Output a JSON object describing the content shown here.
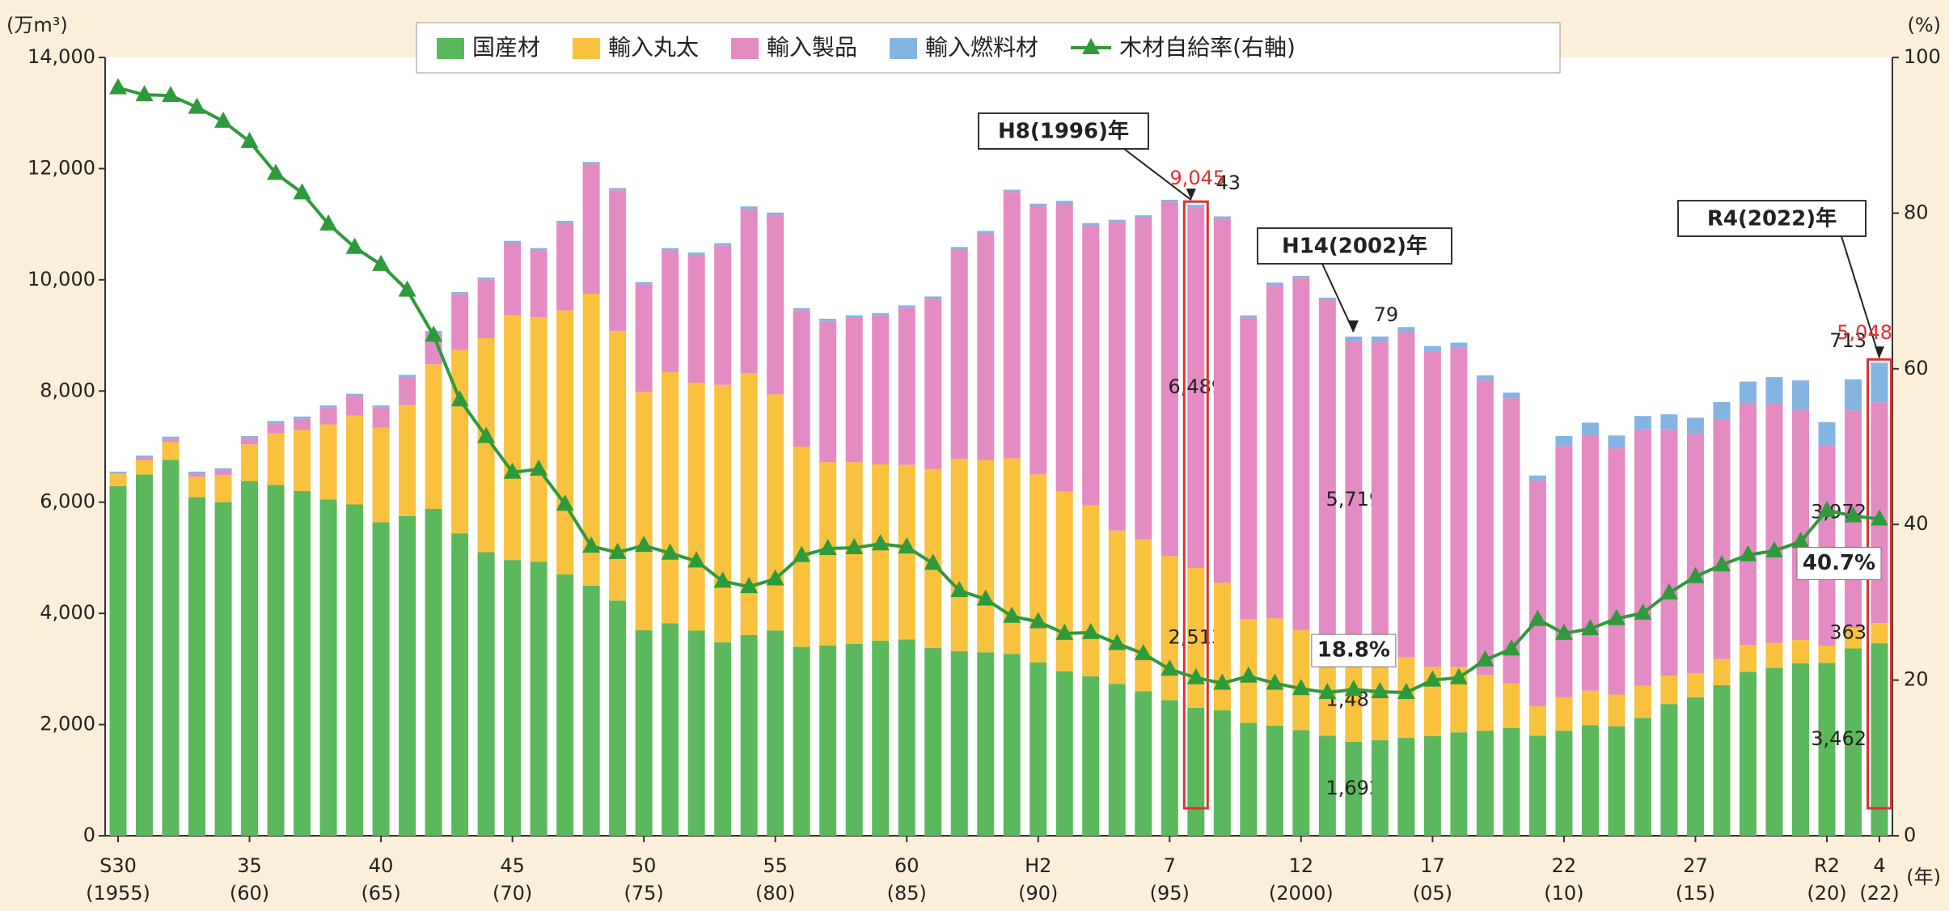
{
  "chart_data": {
    "type": "stacked-bar-line",
    "categories": [
      "S30",
      null,
      null,
      null,
      null,
      "35",
      null,
      null,
      null,
      null,
      "40",
      null,
      null,
      null,
      null,
      "45",
      null,
      null,
      null,
      null,
      "50",
      null,
      null,
      null,
      null,
      "55",
      null,
      null,
      null,
      null,
      "60",
      null,
      null,
      null,
      null,
      "H2",
      null,
      null,
      null,
      null,
      "7",
      null,
      null,
      null,
      null,
      "12",
      null,
      null,
      null,
      null,
      "17",
      null,
      null,
      null,
      null,
      "22",
      null,
      null,
      null,
      null,
      "27",
      null,
      null,
      null,
      null,
      "R2",
      null,
      "4"
    ],
    "categories_sub": [
      "(1955)",
      null,
      null,
      null,
      null,
      "(60)",
      null,
      null,
      null,
      null,
      "(65)",
      null,
      null,
      null,
      null,
      "(70)",
      null,
      null,
      null,
      null,
      "(75)",
      null,
      null,
      null,
      null,
      "(80)",
      null,
      null,
      null,
      null,
      "(85)",
      null,
      null,
      null,
      null,
      "(90)",
      null,
      null,
      null,
      null,
      "(95)",
      null,
      null,
      null,
      null,
      "(2000)",
      null,
      null,
      null,
      null,
      "(05)",
      null,
      null,
      null,
      null,
      "(10)",
      null,
      null,
      null,
      null,
      "(15)",
      null,
      null,
      null,
      null,
      "(20)",
      null,
      "(22)"
    ],
    "y_label": "(万m³)",
    "y2_label": "(%)",
    "x_label": "(年)",
    "ylim": [
      0,
      14000
    ],
    "yticks": [
      0,
      {
        "value": 2000,
        "label": "2,000"
      },
      {
        "value": 4000,
        "label": "4,000"
      },
      {
        "value": 6000,
        "label": "6,000"
      },
      {
        "value": 8000,
        "label": "8,000"
      },
      {
        "value": 10000,
        "label": "10,000"
      },
      {
        "value": 12000,
        "label": "12,000"
      },
      {
        "value": 14000,
        "label": "14,000"
      }
    ],
    "y2lim": [
      0,
      100
    ],
    "y2ticks": [
      0,
      20,
      40,
      60,
      80,
      100
    ],
    "series": [
      {
        "name": "国産材",
        "color": "#5cb85c",
        "values": [
          6290,
          6500,
          6760,
          6090,
          6000,
          6380,
          6310,
          6200,
          6050,
          5960,
          5640,
          5750,
          5880,
          5440,
          5100,
          4960,
          4930,
          4700,
          4500,
          4230,
          3700,
          3820,
          3690,
          3480,
          3610,
          3690,
          3400,
          3420,
          3450,
          3510,
          3530,
          3380,
          3320,
          3300,
          3270,
          3120,
          2960,
          2870,
          2730,
          2600,
          2440,
          2304,
          2260,
          2030,
          1980,
          1900,
          1800,
          1692,
          1720,
          1760,
          1790,
          1860,
          1890,
          1940,
          1800,
          1890,
          1990,
          1970,
          2120,
          2370,
          2490,
          2710,
          2950,
          3020,
          3100,
          3110,
          3370,
          3462
        ],
        "value_labels": [
          null,
          null,
          null,
          null,
          null,
          null,
          null,
          null,
          null,
          null,
          null,
          null,
          null,
          null,
          null,
          null,
          null,
          null,
          null,
          null,
          null,
          null,
          null,
          null,
          null,
          null,
          null,
          null,
          null,
          null,
          null,
          null,
          null,
          null,
          null,
          null,
          null,
          null,
          null,
          null,
          null,
          null,
          null,
          null,
          null,
          null,
          null,
          "1,692",
          null,
          null,
          null,
          null,
          null,
          null,
          null,
          null,
          null,
          null,
          null,
          null,
          null,
          null,
          null,
          null,
          null,
          null,
          null,
          "3,462"
        ]
      },
      {
        "name": "輸入丸太",
        "color": "#f8c23e",
        "values": [
          220,
          260,
          320,
          370,
          490,
          660,
          930,
          1100,
          1350,
          1600,
          1700,
          2000,
          2600,
          3300,
          3850,
          4400,
          4400,
          4750,
          5250,
          4850,
          4280,
          4520,
          4460,
          4630,
          4710,
          4250,
          3600,
          3300,
          3270,
          3170,
          3140,
          3220,
          3460,
          3460,
          3520,
          3380,
          3230,
          3070,
          2760,
          2730,
          2590,
          2513,
          2290,
          1870,
          1930,
          1800,
          1640,
          1487,
          1420,
          1450,
          1250,
          1180,
          1000,
          800,
          530,
          600,
          620,
          570,
          580,
          510,
          430,
          470,
          480,
          450,
          420,
          310,
          370,
          363
        ],
        "value_labels": [
          null,
          null,
          null,
          null,
          null,
          null,
          null,
          null,
          null,
          null,
          null,
          null,
          null,
          null,
          null,
          null,
          null,
          null,
          null,
          null,
          null,
          null,
          null,
          null,
          null,
          null,
          null,
          null,
          null,
          null,
          null,
          null,
          null,
          null,
          null,
          null,
          null,
          null,
          null,
          null,
          null,
          "2,513",
          null,
          null,
          null,
          null,
          null,
          "1,487",
          null,
          null,
          null,
          null,
          null,
          null,
          null,
          null,
          null,
          null,
          null,
          null,
          null,
          null,
          null,
          null,
          null,
          null,
          null,
          "363"
        ]
      },
      {
        "name": "輸入製品",
        "color": "#e48bc3",
        "values": [
          10,
          40,
          60,
          50,
          80,
          110,
          180,
          200,
          300,
          350,
          360,
          500,
          560,
          1000,
          1050,
          1300,
          1200,
          1570,
          2330,
          2530,
          1940,
          2190,
          2300,
          2510,
          2960,
          3230,
          2450,
          2540,
          2600,
          2680,
          2830,
          3060,
          3770,
          4080,
          4790,
          4830,
          5190,
          5040,
          5550,
          5790,
          6370,
          6489,
          6550,
          5420,
          6000,
          6330,
          6200,
          5719,
          5760,
          5850,
          5680,
          5740,
          5300,
          5130,
          4060,
          4520,
          4600,
          4430,
          4610,
          4430,
          4310,
          4300,
          4340,
          4300,
          4140,
          3600,
          3910,
          3972
        ],
        "value_labels": [
          null,
          null,
          null,
          null,
          null,
          null,
          null,
          null,
          null,
          null,
          null,
          null,
          null,
          null,
          null,
          null,
          null,
          null,
          null,
          null,
          null,
          null,
          null,
          null,
          null,
          null,
          null,
          null,
          null,
          null,
          null,
          null,
          null,
          null,
          null,
          null,
          null,
          null,
          null,
          null,
          null,
          "6,489",
          null,
          null,
          null,
          null,
          null,
          "5,719",
          null,
          null,
          null,
          null,
          null,
          null,
          null,
          null,
          null,
          null,
          null,
          null,
          null,
          null,
          null,
          null,
          null,
          null,
          null,
          "3,972"
        ]
      },
      {
        "name": "輸入燃料材",
        "color": "#84b4e2",
        "values": [
          30,
          40,
          40,
          40,
          40,
          40,
          40,
          40,
          40,
          40,
          40,
          40,
          40,
          40,
          40,
          40,
          40,
          40,
          40,
          40,
          40,
          40,
          40,
          40,
          40,
          40,
          40,
          40,
          40,
          40,
          40,
          40,
          40,
          40,
          40,
          40,
          40,
          40,
          40,
          40,
          40,
          43,
          40,
          40,
          40,
          40,
          40,
          79,
          80,
          90,
          90,
          90,
          90,
          100,
          90,
          180,
          220,
          230,
          240,
          270,
          290,
          320,
          400,
          480,
          530,
          420,
          560,
          713
        ],
        "value_labels": [
          null,
          null,
          null,
          null,
          null,
          null,
          null,
          null,
          null,
          null,
          null,
          null,
          null,
          null,
          null,
          null,
          null,
          null,
          null,
          null,
          null,
          null,
          null,
          null,
          null,
          null,
          null,
          null,
          null,
          null,
          null,
          null,
          null,
          null,
          null,
          null,
          null,
          null,
          null,
          null,
          null,
          "43",
          null,
          null,
          null,
          null,
          null,
          "79",
          null,
          null,
          null,
          null,
          null,
          null,
          null,
          null,
          null,
          null,
          null,
          null,
          null,
          null,
          null,
          null,
          null,
          null,
          null,
          "713"
        ]
      },
      {
        "name": "木材自給率(右軸)",
        "color": "#2f9a3c",
        "axis": "y2",
        "type": "line",
        "values": [
          96.1,
          95.2,
          95.1,
          93.6,
          91.8,
          89.2,
          85.1,
          82.6,
          78.6,
          75.6,
          73.4,
          70.1,
          64.3,
          56.0,
          51.3,
          46.7,
          47.1,
          42.6,
          37.2,
          36.4,
          37.3,
          36.3,
          35.3,
          32.7,
          32.0,
          33.0,
          36.0,
          36.9,
          37.0,
          37.5,
          37.1,
          35.0,
          31.5,
          30.4,
          28.2,
          27.5,
          26.0,
          26.1,
          24.7,
          23.4,
          21.4,
          20.3,
          19.6,
          20.5,
          19.6,
          18.9,
          18.4,
          18.8,
          18.5,
          18.4,
          20.0,
          20.3,
          22.6,
          24.0,
          27.8,
          26.0,
          26.6,
          27.9,
          28.6,
          31.2,
          33.3,
          34.8,
          36.1,
          36.6,
          37.8,
          41.8,
          41.1,
          40.7
        ],
        "value_labels": [
          null,
          null,
          null,
          null,
          null,
          null,
          null,
          null,
          null,
          null,
          null,
          null,
          null,
          null,
          null,
          null,
          null,
          null,
          null,
          null,
          null,
          null,
          null,
          null,
          null,
          null,
          null,
          null,
          null,
          null,
          null,
          null,
          null,
          null,
          null,
          null,
          null,
          null,
          null,
          null,
          null,
          null,
          null,
          null,
          null,
          null,
          null,
          "18.8%",
          null,
          null,
          null,
          null,
          null,
          null,
          null,
          null,
          null,
          null,
          null,
          null,
          null,
          null,
          null,
          null,
          null,
          null,
          null,
          "40.7%"
        ]
      }
    ],
    "annotations": [
      {
        "text": "H8(1996)年"
      },
      {
        "text": "H14(2002)年"
      },
      {
        "text": "R4(2022)年"
      },
      {
        "text": "9,045"
      },
      {
        "text": "5,048"
      }
    ]
  }
}
